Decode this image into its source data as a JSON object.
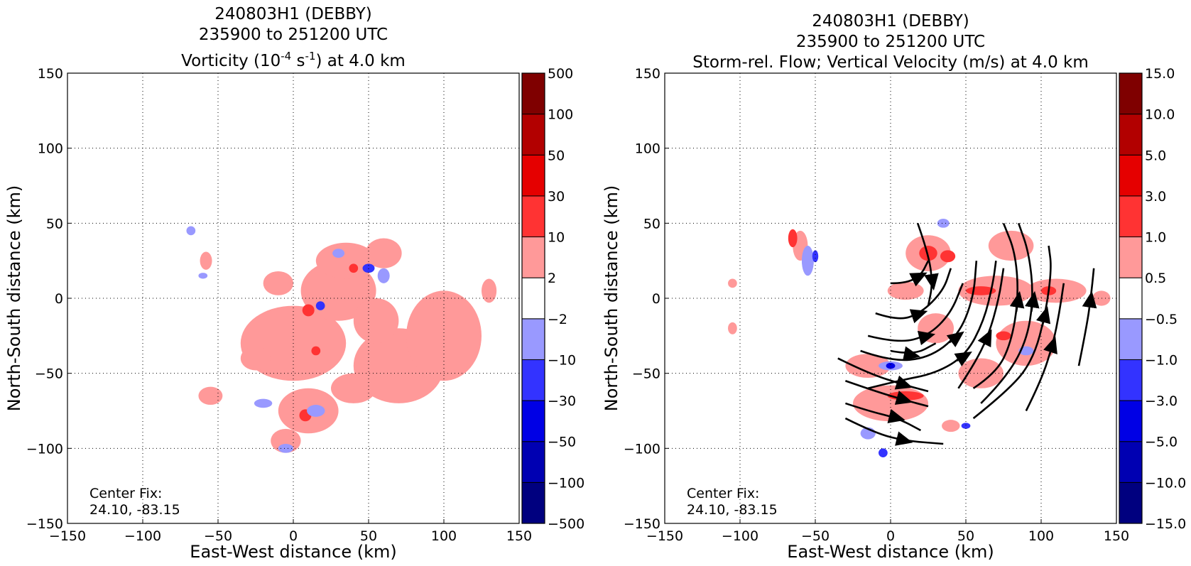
{
  "chart_data": [
    {
      "type": "heatmap",
      "title_lines": [
        "240803H1 (DEBBY)",
        "235900 to 251200 UTC"
      ],
      "subtitle": {
        "prefix": "Vorticity (10",
        "sup1": "-4",
        "mid": " s",
        "sup2": "-1",
        "suffix": ") at 4.0 km"
      },
      "xlabel": "East-West distance (km)",
      "ylabel": "North-South distance (km)",
      "xlim": [
        -150,
        150
      ],
      "ylim": [
        -150,
        150
      ],
      "xticks": [
        -150,
        -100,
        -50,
        0,
        50,
        100,
        150
      ],
      "yticks": [
        -150,
        -100,
        -50,
        0,
        50,
        100,
        150
      ],
      "xtick_labels": [
        "−150",
        "−100",
        "−50",
        "0",
        "50",
        "100",
        "150"
      ],
      "ytick_labels": [
        "−150",
        "−100",
        "−50",
        "0",
        "50",
        "100",
        "150"
      ],
      "grid": true,
      "annotation_lines": [
        "Center Fix:",
        "24.10, -83.15"
      ],
      "colorbar": {
        "levels": [
          "−500",
          "−100",
          "−50",
          "−30",
          "−10",
          "−2",
          "2",
          "10",
          "30",
          "50",
          "100",
          "500"
        ],
        "colors": [
          "#00007f",
          "#0000b2",
          "#0000e5",
          "#3333ff",
          "#9999ff",
          "#ffffff",
          "#ff9999",
          "#ff3333",
          "#e50000",
          "#b20000",
          "#7f0000"
        ]
      },
      "field_colors": {
        "pink": "#ff9999",
        "red": "#ff3333",
        "lightblue": "#9999ff",
        "blue": "#3333ff",
        "darkred": "#e50000",
        "darkblue": "#0000e5"
      },
      "blobs": [
        {
          "x": 0,
          "y": -30,
          "rx": 35,
          "ry": 25,
          "level": "pink"
        },
        {
          "x": 30,
          "y": 5,
          "rx": 25,
          "ry": 20,
          "level": "pink"
        },
        {
          "x": 70,
          "y": -45,
          "rx": 30,
          "ry": 25,
          "level": "pink"
        },
        {
          "x": 100,
          "y": -25,
          "rx": 25,
          "ry": 30,
          "level": "pink"
        },
        {
          "x": 55,
          "y": -15,
          "rx": 15,
          "ry": 15,
          "level": "pink"
        },
        {
          "x": 10,
          "y": -75,
          "rx": 20,
          "ry": 15,
          "level": "pink"
        },
        {
          "x": 35,
          "y": 25,
          "rx": 20,
          "ry": 12,
          "level": "pink"
        },
        {
          "x": -10,
          "y": 10,
          "rx": 10,
          "ry": 8,
          "level": "pink"
        },
        {
          "x": 60,
          "y": 30,
          "rx": 12,
          "ry": 10,
          "level": "pink"
        },
        {
          "x": -5,
          "y": -95,
          "rx": 10,
          "ry": 8,
          "level": "pink"
        },
        {
          "x": -55,
          "y": -65,
          "rx": 8,
          "ry": 6,
          "level": "pink"
        },
        {
          "x": 130,
          "y": 5,
          "rx": 5,
          "ry": 8,
          "level": "pink"
        },
        {
          "x": -58,
          "y": 25,
          "rx": 4,
          "ry": 6,
          "level": "pink"
        },
        {
          "x": -25,
          "y": -40,
          "rx": 10,
          "ry": 8,
          "level": "pink"
        },
        {
          "x": 40,
          "y": -60,
          "rx": 15,
          "ry": 10,
          "level": "pink"
        },
        {
          "x": 10,
          "y": -8,
          "rx": 4,
          "ry": 4,
          "level": "red"
        },
        {
          "x": 40,
          "y": 20,
          "rx": 3,
          "ry": 3,
          "level": "red"
        },
        {
          "x": 8,
          "y": -78,
          "rx": 4,
          "ry": 4,
          "level": "red"
        },
        {
          "x": 15,
          "y": -35,
          "rx": 3,
          "ry": 3,
          "level": "red"
        },
        {
          "x": 60,
          "y": 15,
          "rx": 4,
          "ry": 5,
          "level": "lightblue"
        },
        {
          "x": 15,
          "y": -75,
          "rx": 6,
          "ry": 4,
          "level": "lightblue"
        },
        {
          "x": -20,
          "y": -70,
          "rx": 6,
          "ry": 3,
          "level": "lightblue"
        },
        {
          "x": -5,
          "y": -100,
          "rx": 5,
          "ry": 3,
          "level": "lightblue"
        },
        {
          "x": 30,
          "y": 30,
          "rx": 4,
          "ry": 3,
          "level": "lightblue"
        },
        {
          "x": -68,
          "y": 45,
          "rx": 3,
          "ry": 3,
          "level": "lightblue"
        },
        {
          "x": -60,
          "y": 15,
          "rx": 3,
          "ry": 2,
          "level": "lightblue"
        },
        {
          "x": 50,
          "y": 20,
          "rx": 4,
          "ry": 3,
          "level": "blue"
        },
        {
          "x": 18,
          "y": -5,
          "rx": 3,
          "ry": 3,
          "level": "blue"
        }
      ]
    },
    {
      "type": "heatmap",
      "title_lines": [
        "240803H1 (DEBBY)",
        "235900 to 251200 UTC",
        "Storm-rel. Flow; Vertical Velocity (m/s) at 4.0 km"
      ],
      "xlabel": "East-West distance (km)",
      "ylabel": "North-South distance (km)",
      "xlim": [
        -150,
        150
      ],
      "ylim": [
        -150,
        150
      ],
      "xticks": [
        -150,
        -100,
        -50,
        0,
        50,
        100,
        150
      ],
      "yticks": [
        -150,
        -100,
        -50,
        0,
        50,
        100,
        150
      ],
      "xtick_labels": [
        "−150",
        "−100",
        "−50",
        "0",
        "50",
        "100",
        "150"
      ],
      "ytick_labels": [
        "−150",
        "−100",
        "−50",
        "0",
        "50",
        "100",
        "150"
      ],
      "grid": true,
      "annotation_lines": [
        "Center Fix:",
        "24.10, -83.15"
      ],
      "colorbar": {
        "levels": [
          "−15.0",
          "−10.0",
          "−5.0",
          "−3.0",
          "−1.0",
          "−0.5",
          "0.5",
          "1.0",
          "3.0",
          "5.0",
          "10.0",
          "15.0"
        ],
        "colors": [
          "#00007f",
          "#0000b2",
          "#0000e5",
          "#3333ff",
          "#9999ff",
          "#ffffff",
          "#ff9999",
          "#ff3333",
          "#e50000",
          "#b20000",
          "#7f0000"
        ]
      },
      "field_colors": {
        "pink": "#ff9999",
        "red": "#ff3333",
        "lightblue": "#9999ff",
        "blue": "#3333ff",
        "darkred": "#e50000",
        "darkblue": "#0000e5"
      },
      "blobs": [
        {
          "x": 25,
          "y": 30,
          "rx": 15,
          "ry": 12,
          "level": "pink"
        },
        {
          "x": 70,
          "y": 5,
          "rx": 25,
          "ry": 10,
          "level": "pink"
        },
        {
          "x": 110,
          "y": 5,
          "rx": 20,
          "ry": 8,
          "level": "pink"
        },
        {
          "x": 80,
          "y": 35,
          "rx": 15,
          "ry": 10,
          "level": "pink"
        },
        {
          "x": 90,
          "y": -30,
          "rx": 20,
          "ry": 15,
          "level": "pink"
        },
        {
          "x": 60,
          "y": -50,
          "rx": 15,
          "ry": 10,
          "level": "pink"
        },
        {
          "x": 0,
          "y": -70,
          "rx": 25,
          "ry": 12,
          "level": "pink"
        },
        {
          "x": -15,
          "y": -45,
          "rx": 15,
          "ry": 8,
          "level": "pink"
        },
        {
          "x": 30,
          "y": -20,
          "rx": 12,
          "ry": 10,
          "level": "pink"
        },
        {
          "x": 10,
          "y": 5,
          "rx": 12,
          "ry": 6,
          "level": "pink"
        },
        {
          "x": -60,
          "y": 35,
          "rx": 5,
          "ry": 10,
          "level": "pink"
        },
        {
          "x": -105,
          "y": 10,
          "rx": 3,
          "ry": 3,
          "level": "pink"
        },
        {
          "x": -105,
          "y": -20,
          "rx": 3,
          "ry": 4,
          "level": "pink"
        },
        {
          "x": 40,
          "y": -85,
          "rx": 6,
          "ry": 4,
          "level": "pink"
        },
        {
          "x": 140,
          "y": 0,
          "rx": 6,
          "ry": 5,
          "level": "pink"
        },
        {
          "x": 25,
          "y": 30,
          "rx": 6,
          "ry": 5,
          "level": "red"
        },
        {
          "x": 10,
          "y": -65,
          "rx": 12,
          "ry": 3,
          "level": "red"
        },
        {
          "x": 60,
          "y": 5,
          "rx": 10,
          "ry": 3,
          "level": "red"
        },
        {
          "x": 105,
          "y": 5,
          "rx": 5,
          "ry": 3,
          "level": "red"
        },
        {
          "x": -65,
          "y": 40,
          "rx": 3,
          "ry": 6,
          "level": "red"
        },
        {
          "x": 75,
          "y": -25,
          "rx": 5,
          "ry": 3,
          "level": "red"
        },
        {
          "x": 38,
          "y": 28,
          "rx": 5,
          "ry": 4,
          "level": "red"
        },
        {
          "x": -55,
          "y": 25,
          "rx": 4,
          "ry": 10,
          "level": "lightblue"
        },
        {
          "x": 0,
          "y": -45,
          "rx": 8,
          "ry": 3,
          "level": "lightblue"
        },
        {
          "x": -15,
          "y": -90,
          "rx": 5,
          "ry": 4,
          "level": "lightblue"
        },
        {
          "x": 90,
          "y": -35,
          "rx": 5,
          "ry": 3,
          "level": "lightblue"
        },
        {
          "x": 35,
          "y": 50,
          "rx": 4,
          "ry": 3,
          "level": "lightblue"
        },
        {
          "x": -50,
          "y": 28,
          "rx": 2,
          "ry": 4,
          "level": "blue"
        },
        {
          "x": -5,
          "y": -103,
          "rx": 3,
          "ry": 3,
          "level": "blue"
        },
        {
          "x": 50,
          "y": -85,
          "rx": 3,
          "ry": 2,
          "level": "blue"
        },
        {
          "x": 0,
          "y": -45,
          "rx": 3,
          "ry": 2,
          "level": "darkblue"
        }
      ],
      "streamlines": [
        [
          [
            0,
            10
          ],
          [
            10,
            10
          ],
          [
            20,
            15
          ],
          [
            25,
            25
          ]
        ],
        [
          [
            -10,
            -10
          ],
          [
            5,
            -15
          ],
          [
            20,
            -10
          ],
          [
            35,
            5
          ],
          [
            40,
            20
          ]
        ],
        [
          [
            -15,
            -25
          ],
          [
            5,
            -30
          ],
          [
            25,
            -25
          ],
          [
            40,
            -10
          ],
          [
            48,
            10
          ]
        ],
        [
          [
            -20,
            -35
          ],
          [
            0,
            -42
          ],
          [
            25,
            -40
          ],
          [
            45,
            -25
          ],
          [
            55,
            0
          ],
          [
            57,
            25
          ]
        ],
        [
          [
            -15,
            -60
          ],
          [
            5,
            -55
          ],
          [
            30,
            -50
          ],
          [
            50,
            -38
          ],
          [
            62,
            -15
          ],
          [
            68,
            10
          ],
          [
            70,
            25
          ]
        ],
        [
          [
            -35,
            -40
          ],
          [
            -15,
            -50
          ],
          [
            10,
            -58
          ],
          [
            25,
            -62
          ]
        ],
        [
          [
            -30,
            -55
          ],
          [
            -10,
            -62
          ],
          [
            10,
            -68
          ],
          [
            25,
            -72
          ]
        ],
        [
          [
            -30,
            -70
          ],
          [
            -15,
            -75
          ],
          [
            5,
            -80
          ],
          [
            20,
            -88
          ]
        ],
        [
          [
            -30,
            -80
          ],
          [
            -10,
            -90
          ],
          [
            10,
            -95
          ],
          [
            35,
            -97
          ]
        ],
        [
          [
            55,
            -60
          ],
          [
            70,
            -50
          ],
          [
            80,
            -30
          ],
          [
            85,
            0
          ],
          [
            83,
            30
          ],
          [
            75,
            50
          ]
        ],
        [
          [
            60,
            -70
          ],
          [
            75,
            -55
          ],
          [
            90,
            -30
          ],
          [
            95,
            0
          ],
          [
            92,
            30
          ],
          [
            85,
            50
          ]
        ],
        [
          [
            55,
            -80
          ],
          [
            80,
            -60
          ],
          [
            95,
            -40
          ],
          [
            103,
            -10
          ],
          [
            107,
            20
          ],
          [
            105,
            35
          ]
        ],
        [
          [
            90,
            -75
          ],
          [
            100,
            -55
          ],
          [
            108,
            -30
          ],
          [
            112,
            -10
          ],
          [
            115,
            10
          ]
        ],
        [
          [
            125,
            -45
          ],
          [
            130,
            -20
          ],
          [
            133,
            0
          ],
          [
            135,
            20
          ]
        ],
        [
          [
            45,
            -60
          ],
          [
            55,
            -45
          ],
          [
            65,
            -25
          ],
          [
            72,
            0
          ],
          [
            75,
            20
          ]
        ],
        [
          [
            18,
            50
          ],
          [
            25,
            30
          ],
          [
            28,
            10
          ],
          [
            25,
            -5
          ]
        ],
        [
          [
            0,
            -35
          ],
          [
            15,
            -38
          ],
          [
            30,
            -30
          ]
        ]
      ]
    }
  ]
}
